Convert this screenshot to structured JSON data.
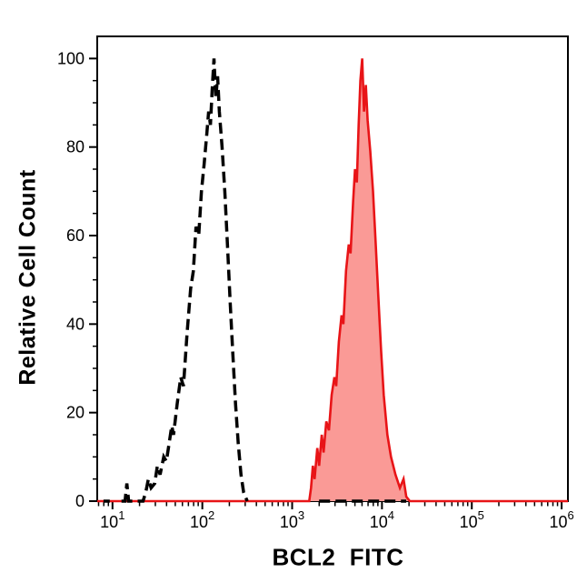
{
  "figure": {
    "background": "#ffffff"
  },
  "chart_data": {
    "type": "area",
    "subtype": "flow-cytometry-overlay-histogram",
    "title": "",
    "xlabel": "BCL2  FITC",
    "ylabel": "Relative Cell Count",
    "x_scale": "log10",
    "grid": false,
    "legend": false,
    "x_axis": {
      "range_log10": [
        0.83,
        6.07
      ],
      "major_tick_base": "10",
      "major_tick_exponents": [
        "1",
        "2",
        "3",
        "4",
        "5",
        "6"
      ],
      "minor_ticks": "log-decade 2-9"
    },
    "y_axis": {
      "range": [
        0,
        105
      ],
      "major_ticks": [
        0,
        20,
        40,
        60,
        80,
        100
      ],
      "minor_tick_step": 5
    },
    "series": [
      {
        "name": "red-filled-curve",
        "line_style": "solid",
        "stroke_color": "#e81417",
        "fill_color": "#fa9a96",
        "stroke_width": 2.6,
        "dash": null,
        "peak_log10x": 3.78,
        "peak_value": 100,
        "segments": [
          [
            [
              0.83,
              0
            ],
            [
              3.19,
              0
            ],
            [
              3.21,
              3
            ],
            [
              3.23,
              8
            ],
            [
              3.25,
              5
            ],
            [
              3.28,
              12
            ],
            [
              3.3,
              8
            ],
            [
              3.33,
              15
            ],
            [
              3.35,
              11
            ],
            [
              3.38,
              18
            ],
            [
              3.41,
              16
            ],
            [
              3.44,
              24
            ],
            [
              3.47,
              28
            ],
            [
              3.49,
              26
            ],
            [
              3.52,
              36
            ],
            [
              3.55,
              42
            ],
            [
              3.57,
              40
            ],
            [
              3.6,
              52
            ],
            [
              3.63,
              58
            ],
            [
              3.65,
              56
            ],
            [
              3.68,
              68
            ],
            [
              3.7,
              75
            ],
            [
              3.72,
              72
            ],
            [
              3.74,
              85
            ],
            [
              3.76,
              95
            ],
            [
              3.78,
              100
            ],
            [
              3.8,
              88
            ],
            [
              3.82,
              94
            ],
            [
              3.84,
              86
            ],
            [
              3.87,
              79
            ],
            [
              3.9,
              70
            ],
            [
              3.93,
              58
            ],
            [
              3.96,
              46
            ],
            [
              3.99,
              34
            ],
            [
              4.02,
              24
            ],
            [
              4.06,
              15
            ],
            [
              4.1,
              10
            ],
            [
              4.15,
              6
            ],
            [
              4.2,
              3
            ],
            [
              4.24,
              5
            ],
            [
              4.27,
              1
            ],
            [
              4.31,
              0
            ],
            [
              6.07,
              0
            ]
          ]
        ]
      },
      {
        "name": "black-dashed-curve",
        "line_style": "dashed",
        "stroke_color": "#000000",
        "fill_color": null,
        "stroke_width": 3.5,
        "dash": [
          12,
          6
        ],
        "peak_log10x": 2.13,
        "peak_value": 100,
        "segments": [
          [
            [
              0.9,
              0
            ],
            [
              0.97,
              0
            ]
          ],
          [
            [
              1.1,
              0
            ],
            [
              1.14,
              0
            ],
            [
              1.16,
              4
            ],
            [
              1.18,
              0
            ],
            [
              1.22,
              0
            ]
          ],
          [
            [
              1.28,
              0
            ],
            [
              1.34,
              0
            ],
            [
              1.37,
              2
            ],
            [
              1.4,
              5
            ],
            [
              1.43,
              3
            ],
            [
              1.47,
              4
            ],
            [
              1.5,
              8
            ],
            [
              1.53,
              6
            ],
            [
              1.57,
              10
            ],
            [
              1.6,
              9
            ],
            [
              1.63,
              13
            ],
            [
              1.66,
              17
            ],
            [
              1.68,
              15
            ],
            [
              1.72,
              22
            ],
            [
              1.76,
              28
            ],
            [
              1.79,
              26
            ],
            [
              1.83,
              38
            ],
            [
              1.87,
              48
            ],
            [
              1.9,
              52
            ],
            [
              1.93,
              62
            ],
            [
              1.96,
              60
            ],
            [
              1.99,
              70
            ],
            [
              2.02,
              76
            ],
            [
              2.05,
              83
            ],
            [
              2.07,
              88
            ],
            [
              2.09,
              85
            ],
            [
              2.11,
              93
            ],
            [
              2.13,
              100
            ],
            [
              2.15,
              91
            ],
            [
              2.17,
              96
            ],
            [
              2.19,
              88
            ],
            [
              2.22,
              80
            ],
            [
              2.25,
              70
            ],
            [
              2.28,
              58
            ],
            [
              2.31,
              45
            ],
            [
              2.34,
              33
            ],
            [
              2.37,
              22
            ],
            [
              2.4,
              13
            ],
            [
              2.43,
              6
            ],
            [
              2.46,
              2
            ],
            [
              2.5,
              0
            ]
          ],
          [
            [
              3.3,
              0
            ],
            [
              4.27,
              0
            ]
          ]
        ]
      }
    ]
  }
}
